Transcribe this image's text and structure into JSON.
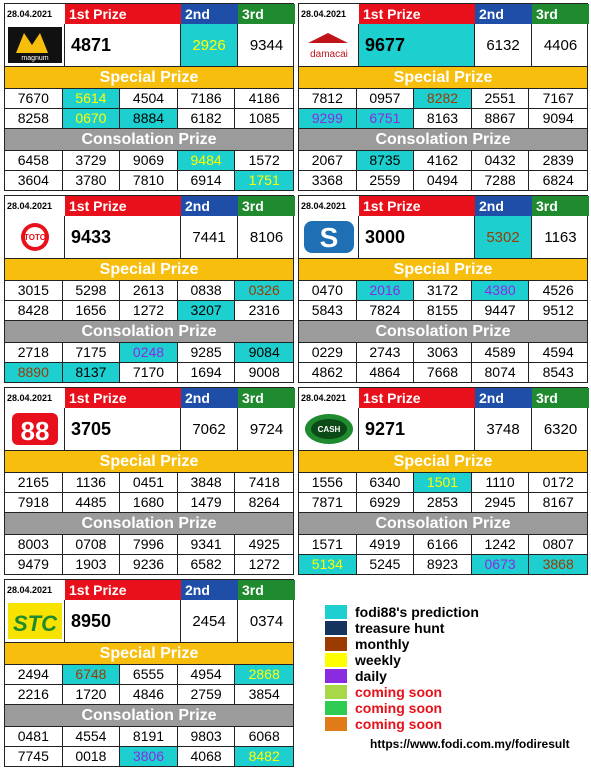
{
  "header": {
    "date": "28.04.2021",
    "first": "1st Prize",
    "second": "2nd",
    "third": "3rd"
  },
  "labels": {
    "special": "Special Prize",
    "consolation": "Consolation Prize"
  },
  "panels": [
    {
      "logo": "magnum",
      "first": "4871",
      "second": "2926",
      "third": "9344",
      "special": [
        [
          "7670",
          "5614",
          "4504",
          "7186",
          "4186"
        ],
        [
          "8258",
          "0670",
          "8884",
          "6182",
          "1085"
        ]
      ],
      "consolation": [
        [
          "6458",
          "3729",
          "9069",
          "9484",
          "1572"
        ],
        [
          "3604",
          "3780",
          "7810",
          "6914",
          "1751"
        ]
      ]
    },
    {
      "logo": "damacai",
      "first": "9677",
      "second": "6132",
      "third": "4406",
      "special": [
        [
          "7812",
          "0957",
          "8282",
          "2551",
          "7167"
        ],
        [
          "9299",
          "6751",
          "8163",
          "8867",
          "9094"
        ]
      ],
      "consolation": [
        [
          "2067",
          "8735",
          "4162",
          "0432",
          "2839"
        ],
        [
          "3368",
          "2559",
          "0494",
          "7288",
          "6824"
        ]
      ]
    },
    {
      "logo": "toto",
      "first": "9433",
      "second": "7441",
      "third": "8106",
      "special": [
        [
          "3015",
          "5298",
          "2613",
          "0838",
          "0326"
        ],
        [
          "8428",
          "1656",
          "1272",
          "3207",
          "2316"
        ]
      ],
      "consolation": [
        [
          "2718",
          "7175",
          "0248",
          "9285",
          "9084"
        ],
        [
          "8890",
          "8137",
          "7170",
          "1694",
          "9008"
        ]
      ]
    },
    {
      "logo": "sabah",
      "first": "3000",
      "second": "5302",
      "third": "1163",
      "special": [
        [
          "0470",
          "2016",
          "3172",
          "4380",
          "4526"
        ],
        [
          "5843",
          "7824",
          "8155",
          "9447",
          "9512"
        ]
      ],
      "consolation": [
        [
          "0229",
          "2743",
          "3063",
          "4589",
          "4594"
        ],
        [
          "4862",
          "4864",
          "7668",
          "8074",
          "8543"
        ]
      ]
    },
    {
      "logo": "88",
      "first": "3705",
      "second": "7062",
      "third": "9724",
      "special": [
        [
          "2165",
          "1136",
          "0451",
          "3848",
          "7418"
        ],
        [
          "7918",
          "4485",
          "1680",
          "1479",
          "8264"
        ]
      ],
      "consolation": [
        [
          "8003",
          "0708",
          "7996",
          "9341",
          "4925"
        ],
        [
          "9479",
          "1903",
          "9236",
          "6582",
          "1272"
        ]
      ]
    },
    {
      "logo": "cash",
      "first": "9271",
      "second": "3748",
      "third": "6320",
      "special": [
        [
          "1556",
          "6340",
          "1501",
          "1110",
          "0172"
        ],
        [
          "7871",
          "6929",
          "2853",
          "2945",
          "8167"
        ]
      ],
      "consolation": [
        [
          "1571",
          "4919",
          "6166",
          "1242",
          "0807"
        ],
        [
          "5134",
          "5245",
          "8923",
          "0673",
          "3868"
        ]
      ]
    },
    {
      "logo": "stc",
      "first": "8950",
      "second": "2454",
      "third": "0374",
      "special": [
        [
          "2494",
          "6748",
          "6555",
          "4954",
          "2868"
        ],
        [
          "2216",
          "1720",
          "4846",
          "2759",
          "3854"
        ]
      ],
      "consolation": [
        [
          "0481",
          "4554",
          "8191",
          "9803",
          "6068"
        ],
        [
          "7745",
          "0018",
          "3806",
          "4068",
          "8482"
        ]
      ]
    }
  ],
  "legend": [
    {
      "label": "fodi88's prediction",
      "color": "#1ecfcf",
      "text_color": "#000000"
    },
    {
      "label": "treasure hunt",
      "color": "#14345e",
      "text_color": "#000000"
    },
    {
      "label": "monthly",
      "color": "#9a3b00",
      "text_color": "#000000"
    },
    {
      "label": "weekly",
      "color": "#ffff00",
      "text_color": "#000000"
    },
    {
      "label": "daily",
      "color": "#8a2be2",
      "text_color": "#000000"
    },
    {
      "label": "coming soon",
      "color": "#a8d84a",
      "text_color": "#e8101a"
    },
    {
      "label": "coming soon",
      "color": "#2ecc52",
      "text_color": "#e8101a"
    },
    {
      "label": "coming soon",
      "color": "#e07b1a",
      "text_color": "#e8101a"
    }
  ],
  "url": "https://www.fodi.com.my/fodiresult"
}
